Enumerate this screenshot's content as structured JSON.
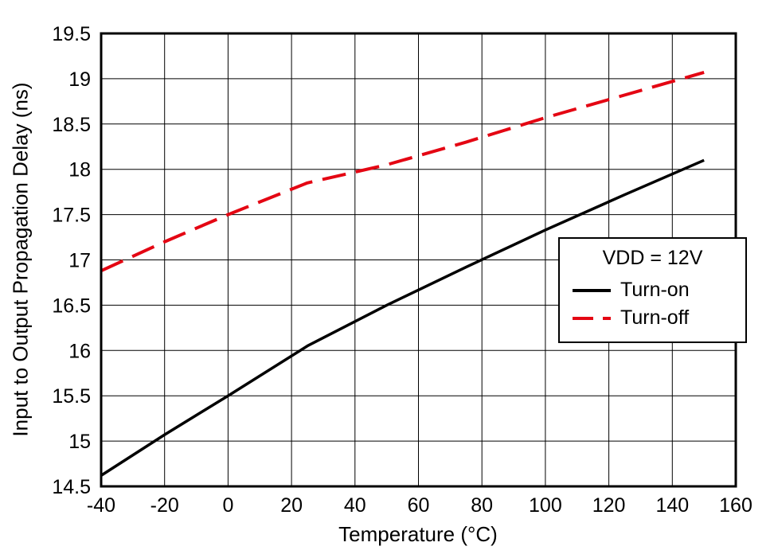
{
  "chart_data": {
    "type": "line",
    "title": "",
    "xlabel": "Temperature (°C)",
    "ylabel": "Input to Output Propagation Delay (ns)",
    "xlim": [
      -40,
      160
    ],
    "ylim": [
      14.5,
      19.5
    ],
    "xticks": [
      -40,
      -20,
      0,
      20,
      40,
      60,
      80,
      100,
      120,
      140,
      160
    ],
    "yticks": [
      14.5,
      15,
      15.5,
      16,
      16.5,
      17,
      17.5,
      18,
      18.5,
      19,
      19.5
    ],
    "grid": true,
    "legend": {
      "title": "VDD = 12V",
      "position": "right-middle"
    },
    "colors": {
      "turn_on": "#000000",
      "turn_off": "#e40613",
      "grid": "#000000",
      "frame": "#000000"
    },
    "series": [
      {
        "name": "Turn-on",
        "color": "#000000",
        "dash": "solid",
        "x": [
          -40,
          -20,
          0,
          25,
          50,
          75,
          100,
          125,
          150
        ],
        "y": [
          14.62,
          15.07,
          15.5,
          16.05,
          16.5,
          16.92,
          17.33,
          17.72,
          18.1
        ]
      },
      {
        "name": "Turn-off",
        "color": "#e40613",
        "dash": "dashed",
        "x": [
          -40,
          -20,
          0,
          25,
          50,
          75,
          100,
          125,
          150
        ],
        "y": [
          16.88,
          17.2,
          17.5,
          17.85,
          18.05,
          18.3,
          18.57,
          18.82,
          19.07
        ]
      }
    ]
  }
}
